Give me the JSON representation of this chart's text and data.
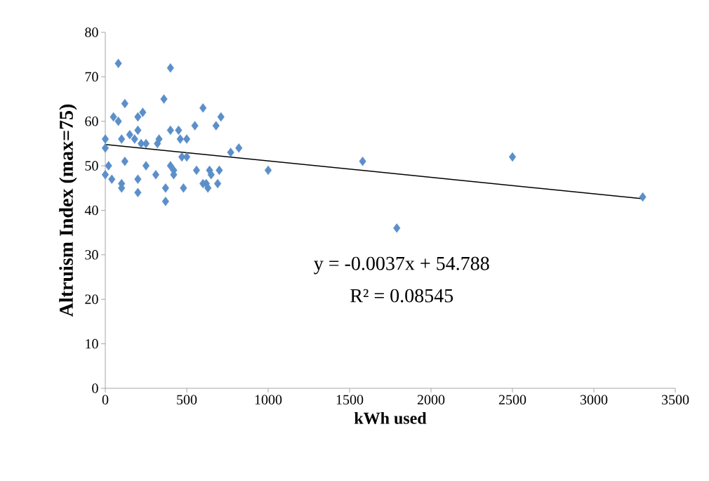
{
  "chart_data": {
    "type": "scatter",
    "xlabel": "kWh used",
    "ylabel": "Altruism Index (max=75)",
    "xlim": [
      0,
      3500
    ],
    "ylim": [
      0,
      80
    ],
    "xticks": [
      0,
      500,
      1000,
      1500,
      2000,
      2500,
      3000,
      3500
    ],
    "yticks": [
      0,
      10,
      20,
      30,
      40,
      50,
      60,
      70,
      80
    ],
    "grid": false,
    "annotations": [
      "y = -0.0037x + 54.788",
      "R² = 0.08545"
    ],
    "series": [
      {
        "marker": "diamond",
        "color": "#5b8fc9",
        "x": [
          0,
          0,
          0,
          20,
          50,
          40,
          80,
          80,
          100,
          100,
          100,
          120,
          120,
          150,
          180,
          200,
          200,
          200,
          200,
          220,
          230,
          250,
          250,
          310,
          330,
          320,
          360,
          370,
          370,
          400,
          400,
          400,
          420,
          420,
          450,
          460,
          470,
          480,
          500,
          500,
          550,
          560,
          600,
          600,
          620,
          630,
          640,
          650,
          680,
          690,
          700,
          710,
          770,
          820,
          1000,
          1580,
          1790,
          2500,
          3300
        ],
        "values": [
          56,
          54,
          48,
          50,
          61,
          47,
          73,
          60,
          56,
          46,
          45,
          64,
          51,
          57,
          56,
          58,
          47,
          44,
          61,
          55,
          62,
          50,
          55,
          48,
          56,
          55,
          65,
          45,
          42,
          72,
          58,
          50,
          48,
          49,
          58,
          56,
          52,
          45,
          56,
          52,
          59,
          49,
          63,
          46,
          46,
          45,
          49,
          48,
          59,
          46,
          49,
          61,
          53,
          54,
          49,
          51,
          36,
          52,
          43
        ]
      },
      {
        "type": "line",
        "marker": "none",
        "color": "#000000",
        "x": [
          0,
          3300
        ],
        "values": [
          54.8,
          42.6
        ]
      }
    ]
  }
}
